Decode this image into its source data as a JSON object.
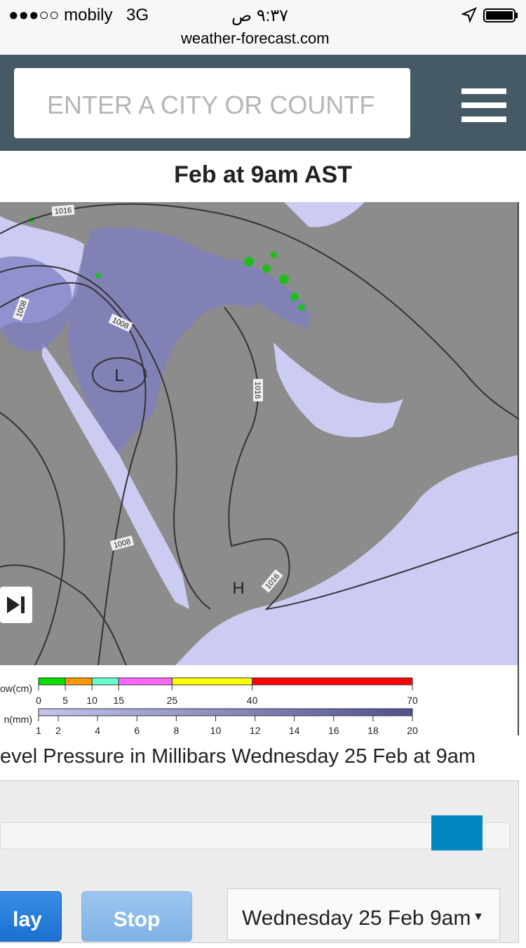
{
  "status_bar": {
    "carrier": "●●●○○ mobily",
    "network": "3G",
    "time": "٩:٣٧ ص",
    "url": "weather-forecast.com"
  },
  "search": {
    "placeholder": "ENTER A CITY OR COUNTF"
  },
  "map": {
    "title": "Feb at 9am AST",
    "isobar_labels": [
      "1016",
      "1008",
      "1008",
      "1016",
      "1008",
      "1016"
    ],
    "pressure_centers": [
      "L",
      "H"
    ],
    "caption": "evel Pressure in Millibars Wednesday 25 Feb at 9am"
  },
  "legend": {
    "snow": {
      "label": "ow(cm)",
      "ticks": [
        0,
        5,
        10,
        15,
        25,
        40,
        70
      ],
      "colors": [
        "#00e000",
        "#ff9900",
        "#66ffcc",
        "#ff66ff",
        "#ffff00",
        "#ff0000"
      ]
    },
    "rain": {
      "label": "n(mm)",
      "ticks": [
        1,
        2,
        4,
        6,
        8,
        10,
        12,
        14,
        16,
        18,
        20
      ]
    }
  },
  "controls": {
    "play": "lay",
    "stop": "Stop",
    "date": "Wednesday 25 Feb 9am"
  }
}
